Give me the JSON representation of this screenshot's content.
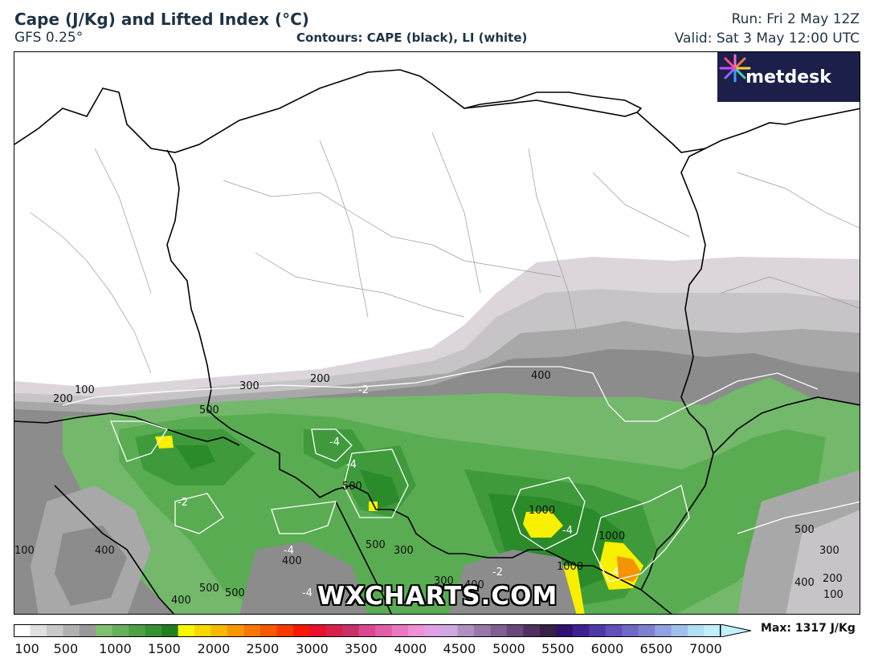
{
  "header": {
    "title": "Cape (J/Kg) and Lifted Index (°C)",
    "model": "GFS 0.25°",
    "contours_note": "Contours: CAPE (black), LI (white)",
    "run": "Run: Fri 2 May 12Z",
    "valid": "Valid: Sat 3 May 12:00 UTC"
  },
  "logo": {
    "text": "metdesk",
    "icon": "metdesk-burst-icon"
  },
  "watermark": "WXCHARTS.COM",
  "map": {
    "region": "Poland and surrounding Central Europe",
    "cape_labels": [
      "100",
      "200",
      "300",
      "200",
      "400",
      "500",
      "500",
      "-4",
      "-4",
      "500",
      "500",
      "300",
      "1000",
      "1000",
      "1000",
      "500",
      "300",
      "200",
      "100",
      "400",
      "400",
      "500",
      "500",
      "300",
      "400",
      "100",
      "400"
    ],
    "li_labels": [
      "-2",
      "-2",
      "-4",
      "-4",
      "-4",
      "-4",
      "-2"
    ],
    "colors": {
      "land": "#ffffff",
      "cape_100": "#dcd6dc",
      "cape_200": "#c7c4c7",
      "cape_300": "#a8a8a8",
      "cape_400": "#8c8c8c",
      "cape_500": "#73b86b",
      "cape_600": "#5aac52",
      "cape_700": "#3f9a3c",
      "cape_800": "#2b8a2a",
      "cape_1000": "#f8f000",
      "cape_1100": "#f4c400",
      "cape_1200": "#f49400"
    }
  },
  "colorbar": {
    "ticks": [
      "100",
      "500",
      "1000",
      "1500",
      "2000",
      "2500",
      "3000",
      "3500",
      "4000",
      "4500",
      "5000",
      "5500",
      "6000",
      "6500",
      "7000"
    ],
    "max_label": "Max: 1317 J/Kg",
    "colors": [
      "#ffffff",
      "#e0e0e0",
      "#c8c8c8",
      "#b0b0b0",
      "#989898",
      "#7fbf70",
      "#66b05c",
      "#4ea046",
      "#379033",
      "#207f20",
      "#f7f700",
      "#f7d800",
      "#f7b800",
      "#f79800",
      "#f77800",
      "#f75800",
      "#f73800",
      "#f71800",
      "#e8102c",
      "#d8204a",
      "#c83068",
      "#d84890",
      "#e060a8",
      "#e878c0",
      "#f090d8",
      "#e0a0e8",
      "#d0a8e0",
      "#b090c0",
      "#9878a8",
      "#806090",
      "#684878",
      "#503060",
      "#382048",
      "#301070",
      "#402090",
      "#5038a8",
      "#6050b8",
      "#7068c8",
      "#8080d0",
      "#90a0e0",
      "#a0c0ec",
      "#b0e0f4",
      "#c0f0ff"
    ]
  }
}
